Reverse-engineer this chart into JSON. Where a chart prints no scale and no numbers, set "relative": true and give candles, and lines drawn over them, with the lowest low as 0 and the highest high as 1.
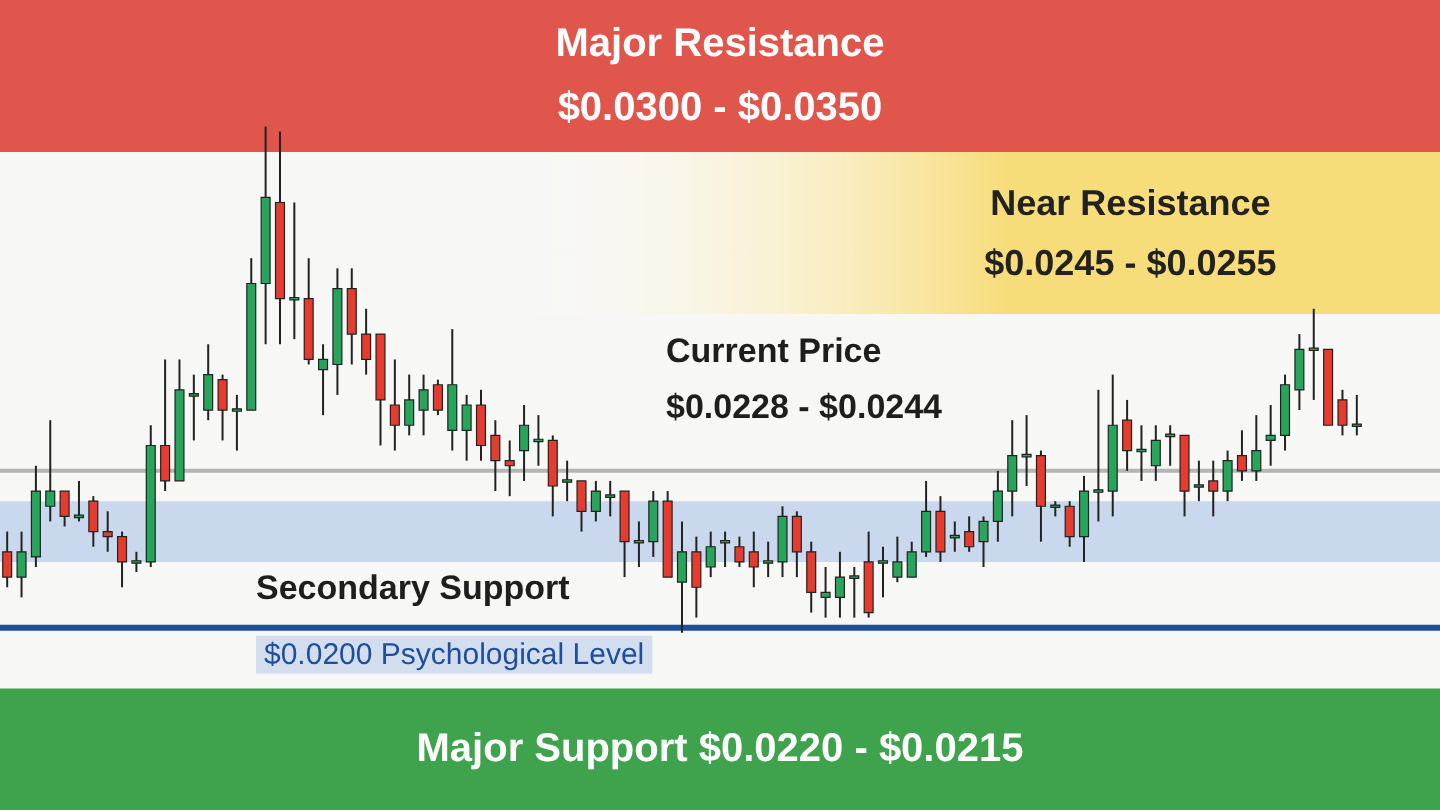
{
  "chart_data": {
    "type": "candlestick",
    "relative": true,
    "tick_labels": false,
    "categories": [
      null,
      null,
      null,
      null,
      null,
      null,
      null,
      null,
      null,
      null,
      null,
      null,
      null,
      null,
      null,
      null,
      null,
      null,
      null,
      null,
      null,
      null,
      null,
      null,
      null,
      null,
      null,
      null,
      null,
      null,
      null,
      null,
      null,
      null,
      null,
      null,
      null,
      null,
      null,
      null,
      null,
      null,
      null,
      null,
      null,
      null,
      null,
      null,
      null,
      null,
      null,
      null,
      null,
      null,
      null,
      null,
      null,
      null,
      null,
      null,
      null,
      null,
      null,
      null,
      null,
      null,
      null,
      null,
      null,
      null,
      null,
      null,
      null,
      null,
      null,
      null,
      null,
      null,
      null,
      null,
      null,
      null,
      null,
      null,
      null,
      null,
      null,
      null,
      null,
      null,
      null,
      null,
      null,
      null,
      null
    ],
    "ohlc": [
      [
        0.16,
        0.2,
        0.09,
        0.11
      ],
      [
        0.11,
        0.2,
        0.07,
        0.16
      ],
      [
        0.15,
        0.33,
        0.13,
        0.28
      ],
      [
        0.25,
        0.42,
        0.22,
        0.28
      ],
      [
        0.28,
        0.28,
        0.21,
        0.23
      ],
      [
        0.23,
        0.3,
        0.22,
        0.23
      ],
      [
        0.26,
        0.27,
        0.17,
        0.2
      ],
      [
        0.2,
        0.24,
        0.16,
        0.19
      ],
      [
        0.19,
        0.2,
        0.09,
        0.14
      ],
      [
        0.14,
        0.16,
        0.12,
        0.14
      ],
      [
        0.14,
        0.41,
        0.13,
        0.37
      ],
      [
        0.37,
        0.54,
        0.28,
        0.3
      ],
      [
        0.3,
        0.54,
        0.3,
        0.48
      ],
      [
        0.47,
        0.51,
        0.38,
        0.47
      ],
      [
        0.44,
        0.57,
        0.42,
        0.51
      ],
      [
        0.5,
        0.51,
        0.38,
        0.44
      ],
      [
        0.44,
        0.47,
        0.36,
        0.44
      ],
      [
        0.44,
        0.74,
        0.44,
        0.69
      ],
      [
        0.69,
        1.0,
        0.57,
        0.86
      ],
      [
        0.85,
        0.99,
        0.57,
        0.66
      ],
      [
        0.66,
        0.85,
        0.58,
        0.66
      ],
      [
        0.66,
        0.74,
        0.53,
        0.54
      ],
      [
        0.52,
        0.57,
        0.43,
        0.54
      ],
      [
        0.53,
        0.72,
        0.47,
        0.68
      ],
      [
        0.68,
        0.72,
        0.53,
        0.59
      ],
      [
        0.59,
        0.64,
        0.51,
        0.54
      ],
      [
        0.59,
        0.59,
        0.37,
        0.46
      ],
      [
        0.45,
        0.54,
        0.36,
        0.41
      ],
      [
        0.41,
        0.51,
        0.39,
        0.46
      ],
      [
        0.44,
        0.51,
        0.39,
        0.48
      ],
      [
        0.49,
        0.5,
        0.43,
        0.44
      ],
      [
        0.4,
        0.6,
        0.36,
        0.49
      ],
      [
        0.4,
        0.47,
        0.34,
        0.45
      ],
      [
        0.45,
        0.48,
        0.34,
        0.37
      ],
      [
        0.39,
        0.42,
        0.28,
        0.34
      ],
      [
        0.34,
        0.38,
        0.27,
        0.33
      ],
      [
        0.36,
        0.45,
        0.3,
        0.41
      ],
      [
        0.38,
        0.43,
        0.33,
        0.38
      ],
      [
        0.38,
        0.39,
        0.23,
        0.29
      ],
      [
        0.3,
        0.34,
        0.26,
        0.3
      ],
      [
        0.3,
        0.3,
        0.2,
        0.24
      ],
      [
        0.24,
        0.3,
        0.22,
        0.28
      ],
      [
        0.27,
        0.3,
        0.23,
        0.27
      ],
      [
        0.28,
        0.28,
        0.11,
        0.18
      ],
      [
        0.18,
        0.22,
        0.13,
        0.18
      ],
      [
        0.18,
        0.28,
        0.15,
        0.26
      ],
      [
        0.26,
        0.28,
        0.11,
        0.11
      ],
      [
        0.1,
        0.22,
        0,
        0.16
      ],
      [
        0.16,
        0.19,
        0.03,
        0.09
      ],
      [
        0.13,
        0.2,
        0.11,
        0.17
      ],
      [
        0.18,
        0.2,
        0.13,
        0.18
      ],
      [
        0.17,
        0.19,
        0.13,
        0.14
      ],
      [
        0.16,
        0.2,
        0.09,
        0.13
      ],
      [
        0.14,
        0.18,
        0.11,
        0.14
      ],
      [
        0.14,
        0.25,
        0.11,
        0.23
      ],
      [
        0.23,
        0.24,
        0.11,
        0.16
      ],
      [
        0.16,
        0.18,
        0.04,
        0.08
      ],
      [
        0.07,
        0.13,
        0.03,
        0.08
      ],
      [
        0.07,
        0.16,
        0.03,
        0.11
      ],
      [
        0.11,
        0.13,
        0.03,
        0.11
      ],
      [
        0.14,
        0.2,
        0.03,
        0.04
      ],
      [
        0.14,
        0.17,
        0.07,
        0.14
      ],
      [
        0.11,
        0.19,
        0.1,
        0.14
      ],
      [
        0.11,
        0.18,
        0.11,
        0.16
      ],
      [
        0.16,
        0.3,
        0.15,
        0.24
      ],
      [
        0.24,
        0.27,
        0.14,
        0.16
      ],
      [
        0.19,
        0.22,
        0.16,
        0.19
      ],
      [
        0.2,
        0.23,
        0.16,
        0.17
      ],
      [
        0.18,
        0.23,
        0.13,
        0.22
      ],
      [
        0.22,
        0.32,
        0.18,
        0.28
      ],
      [
        0.28,
        0.42,
        0.23,
        0.35
      ],
      [
        0.35,
        0.43,
        0.29,
        0.35
      ],
      [
        0.35,
        0.36,
        0.18,
        0.25
      ],
      [
        0.25,
        0.26,
        0.23,
        0.25
      ],
      [
        0.25,
        0.26,
        0.17,
        0.19
      ],
      [
        0.19,
        0.31,
        0.14,
        0.28
      ],
      [
        0.28,
        0.48,
        0.22,
        0.28
      ],
      [
        0.28,
        0.51,
        0.23,
        0.41
      ],
      [
        0.42,
        0.46,
        0.32,
        0.36
      ],
      [
        0.36,
        0.41,
        0.3,
        0.36
      ],
      [
        0.33,
        0.41,
        0.3,
        0.38
      ],
      [
        0.39,
        0.41,
        0.33,
        0.39
      ],
      [
        0.39,
        0.39,
        0.23,
        0.28
      ],
      [
        0.29,
        0.34,
        0.26,
        0.29
      ],
      [
        0.3,
        0.34,
        0.23,
        0.28
      ],
      [
        0.28,
        0.36,
        0.26,
        0.34
      ],
      [
        0.35,
        0.4,
        0.3,
        0.32
      ],
      [
        0.32,
        0.43,
        0.3,
        0.36
      ],
      [
        0.38,
        0.45,
        0.33,
        0.39
      ],
      [
        0.39,
        0.51,
        0.36,
        0.49
      ],
      [
        0.48,
        0.59,
        0.44,
        0.56
      ],
      [
        0.56,
        0.64,
        0.46,
        0.56
      ],
      [
        0.56,
        0.56,
        0.41,
        0.41
      ],
      [
        0.46,
        0.48,
        0.39,
        0.41
      ],
      [
        0.41,
        0.47,
        0.39,
        0.41
      ]
    ],
    "colors": [
      "#e53c2f",
      "#27a55a",
      "#27a55a",
      "#27a55a",
      "#e53c2f",
      "#27a55a",
      "#e53c2f",
      "#e53c2f",
      "#e53c2f",
      "#27a55a",
      "#27a55a",
      "#e53c2f",
      "#27a55a",
      "#27a55a",
      "#27a55a",
      "#e53c2f",
      "#27a55a",
      "#27a55a",
      "#27a55a",
      "#e53c2f",
      "#27a55a",
      "#e53c2f",
      "#27a55a",
      "#27a55a",
      "#e53c2f",
      "#e53c2f",
      "#e53c2f",
      "#e53c2f",
      "#27a55a",
      "#27a55a",
      "#e53c2f",
      "#27a55a",
      "#27a55a",
      "#e53c2f",
      "#e53c2f",
      "#e53c2f",
      "#27a55a",
      "#27a55a",
      "#e53c2f",
      "#27a55a",
      "#e53c2f",
      "#27a55a",
      "#27a55a",
      "#e53c2f",
      "#27a55a",
      "#27a55a",
      "#e53c2f",
      "#27a55a",
      "#e53c2f",
      "#27a55a",
      "#27a55a",
      "#e53c2f",
      "#e53c2f",
      "#27a55a",
      "#27a55a",
      "#e53c2f",
      "#e53c2f",
      "#27a55a",
      "#27a55a",
      "#27a55a",
      "#e53c2f",
      "#27a55a",
      "#27a55a",
      "#27a55a",
      "#27a55a",
      "#e53c2f",
      "#27a55a",
      "#e53c2f",
      "#27a55a",
      "#27a55a",
      "#27a55a",
      "#27a55a",
      "#e53c2f",
      "#27a55a",
      "#e53c2f",
      "#27a55a",
      "#27a55a",
      "#27a55a",
      "#e53c2f",
      "#27a55a",
      "#27a55a",
      "#27a55a",
      "#e53c2f",
      "#27a55a",
      "#e53c2f",
      "#27a55a",
      "#e53c2f",
      "#27a55a",
      "#27a55a",
      "#27a55a",
      "#27a55a",
      "#27a55a",
      "#e53c2f",
      "#e53c2f",
      "#27a55a"
    ],
    "bands": [
      {
        "axis": "y",
        "from": 0.95,
        "to": 1.25,
        "label": "Major Resistance\n$0.0300 - $0.0350",
        "color": "#e0554c"
      },
      {
        "axis": "y",
        "from": 0.63,
        "to": 0.95,
        "label": "Near Resistance\n$0.0245 - $0.0255",
        "color": "#f7dc7a"
      },
      {
        "axis": "y",
        "from": 0.14,
        "to": 0.26,
        "label": null,
        "color": "#b9cdea"
      },
      {
        "axis": "y",
        "from": -0.35,
        "to": -0.11,
        "label": "Major Support $0.0220 - $0.0215",
        "color": "#3fa34d"
      }
    ],
    "ref_lines": [
      {
        "axis": "y",
        "value": 0.01,
        "label": "Secondary Support",
        "color": "#1f4e9c"
      },
      {
        "axis": "y",
        "value": 0.32,
        "label": "Current Price\n$0.0228 - $0.0244",
        "color": "#b5b5b5"
      }
    ],
    "annotations": [
      "$0.0200 Psychological Level"
    ]
  }
}
